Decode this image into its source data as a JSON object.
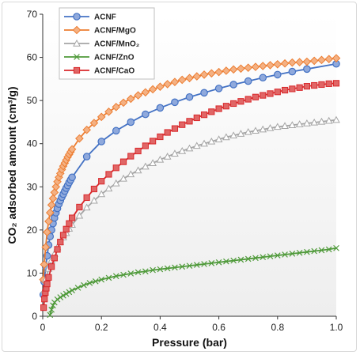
{
  "chart_data": {
    "type": "line",
    "xlabel": "Pressure (bar)",
    "ylabel": "CO₂ adsorbed amount (cm³/g)",
    "xlim": [
      0,
      1.0
    ],
    "ylim": [
      0,
      70
    ],
    "xticks": [
      "0",
      "0.2",
      "0.4",
      "0.6",
      "0.8",
      "1.0"
    ],
    "yticks": [
      "0",
      "10",
      "20",
      "30",
      "40",
      "50",
      "60",
      "70"
    ],
    "grid": false,
    "legend_position": "top-left",
    "series": [
      {
        "name": "ACNF",
        "color": "#4472c4",
        "marker": "circle-filled",
        "x": [
          0.002,
          0.005,
          0.01,
          0.015,
          0.02,
          0.025,
          0.03,
          0.035,
          0.04,
          0.045,
          0.05,
          0.055,
          0.06,
          0.065,
          0.07,
          0.075,
          0.08,
          0.085,
          0.09,
          0.095,
          0.1,
          0.15,
          0.2,
          0.25,
          0.3,
          0.35,
          0.4,
          0.45,
          0.5,
          0.55,
          0.6,
          0.65,
          0.7,
          0.75,
          0.8,
          0.85,
          0.9,
          1.0
        ],
        "y": [
          5.0,
          8.0,
          11.5,
          14.0,
          16.5,
          18.5,
          20.0,
          21.5,
          22.8,
          24.0,
          25.0,
          26.0,
          26.8,
          27.6,
          28.3,
          29.0,
          29.7,
          30.3,
          31.0,
          31.6,
          32.2,
          37.0,
          40.5,
          43.0,
          45.0,
          46.8,
          48.3,
          49.6,
          50.8,
          51.8,
          52.8,
          53.7,
          54.5,
          55.3,
          56.0,
          56.7,
          57.3,
          58.5
        ]
      },
      {
        "name": "ACNF/MgO",
        "color": "#ed7d31",
        "marker": "diamond-filled",
        "x": [
          0.002,
          0.005,
          0.01,
          0.015,
          0.02,
          0.025,
          0.03,
          0.035,
          0.04,
          0.045,
          0.05,
          0.055,
          0.06,
          0.065,
          0.07,
          0.075,
          0.08,
          0.085,
          0.09,
          0.095,
          0.1,
          0.125,
          0.15,
          0.175,
          0.2,
          0.225,
          0.25,
          0.275,
          0.3,
          0.325,
          0.35,
          0.375,
          0.4,
          0.425,
          0.45,
          0.475,
          0.5,
          0.525,
          0.55,
          0.575,
          0.6,
          0.625,
          0.65,
          0.675,
          0.7,
          0.725,
          0.75,
          0.775,
          0.8,
          0.825,
          0.85,
          0.875,
          0.9,
          0.925,
          0.95,
          0.975,
          1.0
        ],
        "y": [
          8.5,
          12.0,
          16.0,
          19.5,
          22.0,
          24.0,
          25.8,
          27.3,
          28.7,
          30.0,
          31.2,
          32.2,
          33.1,
          34.0,
          34.8,
          35.5,
          36.2,
          36.9,
          37.5,
          38.1,
          38.7,
          41.2,
          43.2,
          44.8,
          46.2,
          47.4,
          48.5,
          49.5,
          50.4,
          51.2,
          51.9,
          52.6,
          53.2,
          53.8,
          54.3,
          54.8,
          55.2,
          55.6,
          56.0,
          56.3,
          56.6,
          56.9,
          57.2,
          57.4,
          57.6,
          57.8,
          58.0,
          58.2,
          58.4,
          58.6,
          58.8,
          58.9,
          59.0,
          59.2,
          59.4,
          59.6,
          59.8
        ]
      },
      {
        "name": "ACNF/MnO₂",
        "color": "#a5a5a5",
        "marker": "triangle",
        "x": [
          0.005,
          0.01,
          0.02,
          0.03,
          0.04,
          0.05,
          0.06,
          0.07,
          0.08,
          0.09,
          0.1,
          0.125,
          0.15,
          0.175,
          0.2,
          0.225,
          0.25,
          0.275,
          0.3,
          0.325,
          0.35,
          0.375,
          0.4,
          0.425,
          0.45,
          0.475,
          0.5,
          0.525,
          0.55,
          0.575,
          0.6,
          0.625,
          0.65,
          0.675,
          0.7,
          0.725,
          0.75,
          0.775,
          0.8,
          0.825,
          0.85,
          0.875,
          0.9,
          0.925,
          0.95,
          0.975,
          1.0
        ],
        "y": [
          6.0,
          8.5,
          11.0,
          13.0,
          14.5,
          16.0,
          17.2,
          18.3,
          19.3,
          20.3,
          21.2,
          23.3,
          25.2,
          26.8,
          28.3,
          29.6,
          30.8,
          31.9,
          32.9,
          33.8,
          34.7,
          35.5,
          36.3,
          37.0,
          37.7,
          38.3,
          38.9,
          39.5,
          40.0,
          40.5,
          41.0,
          41.5,
          41.9,
          42.3,
          42.7,
          43.0,
          43.3,
          43.6,
          43.9,
          44.1,
          44.3,
          44.5,
          44.7,
          44.9,
          45.1,
          45.3,
          45.5
        ]
      },
      {
        "name": "ACNF/ZnO",
        "color": "#4f9a3a",
        "marker": "x",
        "x": [
          0.025,
          0.03,
          0.035,
          0.04,
          0.05,
          0.06,
          0.07,
          0.08,
          0.09,
          0.1,
          0.12,
          0.14,
          0.16,
          0.18,
          0.2,
          0.225,
          0.25,
          0.275,
          0.3,
          0.325,
          0.35,
          0.375,
          0.4,
          0.425,
          0.45,
          0.475,
          0.5,
          0.525,
          0.55,
          0.575,
          0.6,
          0.625,
          0.65,
          0.675,
          0.7,
          0.725,
          0.75,
          0.775,
          0.8,
          0.825,
          0.85,
          0.875,
          0.9,
          0.925,
          0.95,
          0.975,
          1.0
        ],
        "y": [
          0.3,
          1.5,
          2.5,
          3.2,
          3.9,
          4.4,
          4.8,
          5.2,
          5.6,
          6.0,
          6.6,
          7.2,
          7.7,
          8.1,
          8.5,
          8.9,
          9.3,
          9.6,
          9.9,
          10.2,
          10.4,
          10.7,
          10.9,
          11.1,
          11.3,
          11.5,
          11.7,
          11.9,
          12.1,
          12.3,
          12.5,
          12.7,
          12.9,
          13.1,
          13.3,
          13.5,
          13.7,
          13.9,
          14.1,
          14.3,
          14.5,
          14.7,
          14.9,
          15.1,
          15.3,
          15.5,
          15.8
        ]
      },
      {
        "name": "ACNF/CaO",
        "color": "#d9282b",
        "marker": "square-filled",
        "x": [
          0.003,
          0.006,
          0.009,
          0.012,
          0.015,
          0.02,
          0.03,
          0.04,
          0.05,
          0.06,
          0.07,
          0.08,
          0.09,
          0.1,
          0.125,
          0.15,
          0.175,
          0.2,
          0.225,
          0.25,
          0.275,
          0.3,
          0.325,
          0.35,
          0.375,
          0.4,
          0.425,
          0.45,
          0.475,
          0.5,
          0.525,
          0.55,
          0.575,
          0.6,
          0.625,
          0.65,
          0.675,
          0.7,
          0.725,
          0.75,
          0.775,
          0.8,
          0.825,
          0.85,
          0.875,
          0.9,
          0.925,
          0.95,
          0.975,
          1.0
        ],
        "y": [
          2.0,
          4.0,
          5.5,
          6.5,
          7.5,
          9.0,
          11.5,
          13.5,
          15.5,
          17.2,
          18.8,
          20.2,
          21.5,
          22.8,
          25.3,
          27.5,
          29.5,
          31.3,
          32.9,
          34.4,
          35.8,
          37.1,
          38.3,
          39.5,
          40.6,
          41.6,
          42.6,
          43.5,
          44.4,
          45.2,
          46.0,
          46.7,
          47.4,
          48.1,
          48.7,
          49.3,
          49.8,
          50.3,
          50.8,
          51.2,
          51.6,
          52.0,
          52.4,
          52.7,
          53.0,
          53.3,
          53.5,
          53.7,
          53.9,
          54.0
        ]
      }
    ]
  }
}
